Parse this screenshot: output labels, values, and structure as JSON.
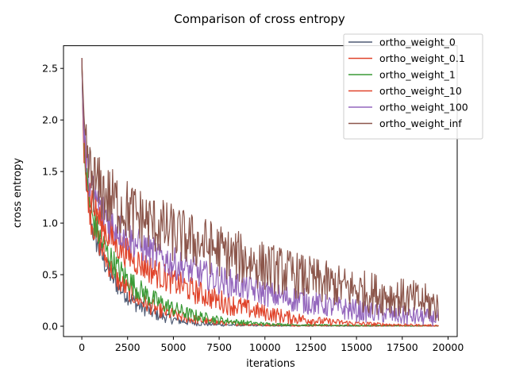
{
  "chart_data": {
    "type": "line",
    "title": "Comparison of cross entropy",
    "xlabel": "iterations",
    "ylabel": "cross entropy",
    "xlim": [
      -1000,
      20500
    ],
    "ylim": [
      -0.1,
      2.72
    ],
    "xticks": [
      0,
      2500,
      5000,
      7500,
      10000,
      12500,
      15000,
      17500,
      20000
    ],
    "xtick_labels": [
      "0",
      "2500",
      "5000",
      "7500",
      "10000",
      "12500",
      "15000",
      "17500",
      "20000"
    ],
    "yticks": [
      0.0,
      0.5,
      1.0,
      1.5,
      2.0,
      2.5
    ],
    "ytick_labels": [
      "0.0",
      "0.5",
      "1.0",
      "1.5",
      "2.0",
      "2.5"
    ],
    "grid": false,
    "legend_position": "top-right",
    "series": [
      {
        "name": "ortho_weight_0",
        "color": "#4e5a73",
        "x": [
          0,
          100,
          300,
          500,
          1000,
          1500,
          2000,
          3000,
          4000,
          5000,
          6000,
          7000,
          8000,
          9000,
          10000,
          12000,
          15000,
          17500,
          19500
        ],
        "mean": [
          2.6,
          1.7,
          1.3,
          1.0,
          0.72,
          0.52,
          0.38,
          0.21,
          0.12,
          0.065,
          0.035,
          0.02,
          0.012,
          0.008,
          0.006,
          0.004,
          0.003,
          0.003,
          0.003
        ],
        "spread": [
          0.0,
          0.1,
          0.1,
          0.1,
          0.08,
          0.07,
          0.06,
          0.05,
          0.04,
          0.03,
          0.02,
          0.012,
          0.008,
          0.005,
          0.004,
          0.003,
          0.002,
          0.002,
          0.002
        ]
      },
      {
        "name": "ortho_weight_0.1",
        "color": "#e0442b",
        "x": [
          0,
          100,
          300,
          500,
          1000,
          1500,
          2000,
          3000,
          4000,
          5000,
          6000,
          7000,
          8000,
          9000,
          10000,
          12000,
          15000,
          17500,
          19500
        ],
        "mean": [
          2.6,
          1.75,
          1.35,
          1.05,
          0.78,
          0.58,
          0.44,
          0.27,
          0.17,
          0.11,
          0.07,
          0.045,
          0.03,
          0.02,
          0.014,
          0.008,
          0.005,
          0.004,
          0.004
        ],
        "spread": [
          0.0,
          0.1,
          0.1,
          0.1,
          0.08,
          0.07,
          0.07,
          0.06,
          0.05,
          0.04,
          0.03,
          0.02,
          0.015,
          0.01,
          0.008,
          0.005,
          0.003,
          0.002,
          0.002
        ]
      },
      {
        "name": "ortho_weight_1",
        "color": "#3a9a36",
        "x": [
          0,
          100,
          300,
          500,
          1000,
          1500,
          2000,
          3000,
          4000,
          5000,
          6000,
          7000,
          8000,
          9000,
          10000,
          12000,
          15000,
          17500,
          19500
        ],
        "mean": [
          2.6,
          1.75,
          1.38,
          1.1,
          0.85,
          0.68,
          0.55,
          0.37,
          0.25,
          0.17,
          0.11,
          0.075,
          0.05,
          0.033,
          0.022,
          0.012,
          0.007,
          0.005,
          0.004
        ],
        "spread": [
          0.0,
          0.1,
          0.1,
          0.1,
          0.09,
          0.08,
          0.08,
          0.07,
          0.06,
          0.05,
          0.04,
          0.03,
          0.02,
          0.015,
          0.01,
          0.006,
          0.004,
          0.003,
          0.002
        ]
      },
      {
        "name": "ortho_weight_10",
        "color": "#e0442b",
        "x": [
          0,
          100,
          300,
          500,
          1000,
          1500,
          2000,
          3000,
          4000,
          5000,
          6000,
          7000,
          8000,
          9000,
          10000,
          11000,
          12000,
          13000,
          15000,
          17500,
          19500
        ],
        "mean": [
          2.6,
          1.8,
          1.45,
          1.25,
          1.02,
          0.88,
          0.78,
          0.63,
          0.52,
          0.43,
          0.35,
          0.28,
          0.22,
          0.17,
          0.13,
          0.095,
          0.07,
          0.05,
          0.025,
          0.012,
          0.007
        ],
        "spread": [
          0.0,
          0.1,
          0.12,
          0.12,
          0.12,
          0.11,
          0.1,
          0.09,
          0.09,
          0.08,
          0.08,
          0.07,
          0.07,
          0.06,
          0.05,
          0.045,
          0.035,
          0.025,
          0.015,
          0.008,
          0.005
        ]
      },
      {
        "name": "ortho_weight_100",
        "color": "#9467bd",
        "x": [
          0,
          100,
          300,
          500,
          1000,
          1500,
          2000,
          3000,
          4000,
          5000,
          6000,
          7000,
          8000,
          9000,
          10000,
          11000,
          12000,
          13000,
          14000,
          15000,
          16000,
          17500,
          19500
        ],
        "mean": [
          2.6,
          1.85,
          1.55,
          1.35,
          1.15,
          1.03,
          0.94,
          0.8,
          0.7,
          0.61,
          0.54,
          0.48,
          0.42,
          0.37,
          0.32,
          0.28,
          0.25,
          0.21,
          0.18,
          0.15,
          0.13,
          0.1,
          0.08
        ],
        "spread": [
          0.0,
          0.12,
          0.12,
          0.12,
          0.12,
          0.12,
          0.11,
          0.1,
          0.1,
          0.1,
          0.09,
          0.09,
          0.09,
          0.08,
          0.08,
          0.08,
          0.08,
          0.07,
          0.07,
          0.07,
          0.06,
          0.06,
          0.05
        ]
      },
      {
        "name": "ortho_weight_inf",
        "color": "#8c564b",
        "x": [
          0,
          100,
          300,
          500,
          1000,
          1500,
          2000,
          3000,
          4000,
          5000,
          6000,
          7000,
          8000,
          9000,
          10000,
          11000,
          12000,
          13000,
          14000,
          15000,
          16000,
          17000,
          18000,
          19500
        ],
        "mean": [
          2.6,
          1.9,
          1.6,
          1.45,
          1.32,
          1.24,
          1.18,
          1.07,
          0.98,
          0.9,
          0.83,
          0.77,
          0.7,
          0.64,
          0.58,
          0.53,
          0.48,
          0.43,
          0.39,
          0.35,
          0.32,
          0.29,
          0.26,
          0.2
        ],
        "spread": [
          0.0,
          0.15,
          0.18,
          0.2,
          0.2,
          0.2,
          0.2,
          0.19,
          0.18,
          0.18,
          0.17,
          0.17,
          0.16,
          0.16,
          0.15,
          0.15,
          0.14,
          0.14,
          0.13,
          0.13,
          0.13,
          0.12,
          0.12,
          0.11
        ]
      }
    ]
  }
}
